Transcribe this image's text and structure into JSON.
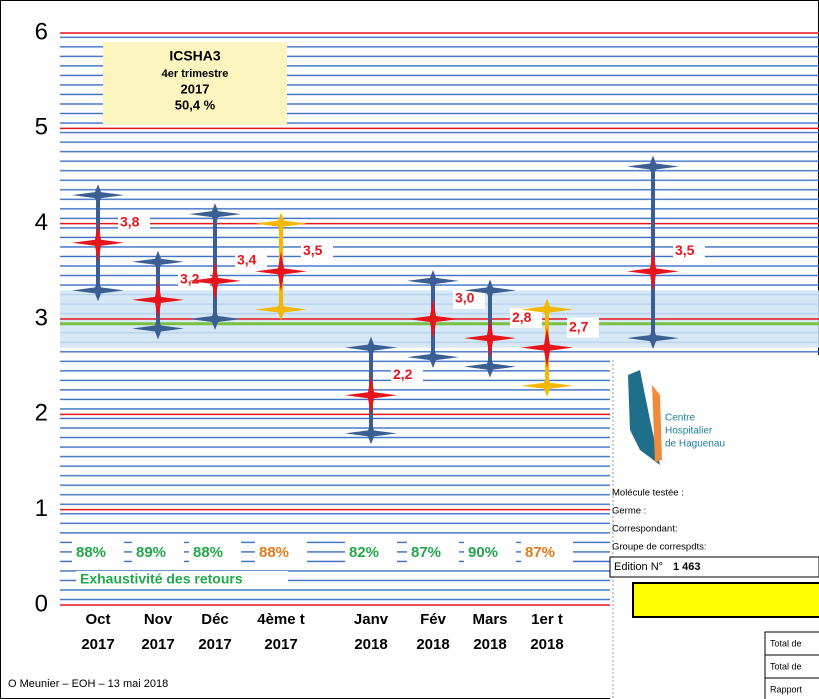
{
  "chart_data": {
    "type": "range",
    "inset": [
      "ICSHA3",
      "4er trimestre",
      "2017",
      "50,4 %"
    ],
    "categories_top": [
      "Oct",
      "Nov",
      "Déc",
      "4ème t",
      "Janv",
      "Fév",
      "Mars",
      "1er t",
      null
    ],
    "categories_bottom": [
      "2017",
      "2017",
      "2017",
      "2017",
      "2018",
      "2018",
      "2018",
      "2018",
      null
    ],
    "mean": [
      3.8,
      3.2,
      3.4,
      3.5,
      2.2,
      3.0,
      2.8,
      2.7,
      3.5
    ],
    "value_labels": [
      "3,8",
      "3,2",
      "3,4",
      "3,5",
      "2,2",
      "3,0",
      "2,8",
      "2,7",
      "3,5"
    ],
    "min": [
      3.3,
      2.9,
      3.0,
      3.1,
      1.8,
      2.6,
      2.5,
      2.3,
      2.8
    ],
    "max": [
      4.3,
      3.6,
      4.1,
      4.0,
      2.7,
      3.4,
      3.3,
      3.1,
      4.6
    ],
    "colors": [
      "#3b5f93",
      "#3b5f93",
      "#3b5f93",
      "#f5b800",
      "#3b5f93",
      "#3b5f93",
      "#3b5f93",
      "#f5b800",
      "#3b5f93"
    ],
    "mean_color": "#e8141c",
    "ylim": [
      0,
      6
    ],
    "yticks": [
      0,
      1,
      2,
      3,
      4,
      5,
      6
    ],
    "target_band": [
      2.7,
      3.3
    ],
    "reference_line": 2.95,
    "exhaustivity": {
      "label": "Exhaustivité des retours",
      "values": [
        88,
        89,
        88,
        88,
        82,
        87,
        90,
        87,
        null
      ],
      "value_labels": [
        "88%",
        "89%",
        "88%",
        "88%",
        "82%",
        "87%",
        "90%",
        "87%",
        null
      ],
      "colors": [
        "#22a84a",
        "#22a84a",
        "#22a84a",
        "#e07b1c",
        "#22a84a",
        "#22a84a",
        "#22a84a",
        "#e07b1c",
        null
      ]
    }
  },
  "document": {
    "logo_lines": [
      "Centre",
      "Hospitalier",
      "de Haguenau"
    ],
    "fields": [
      "Molécule testée :",
      "Germe :",
      "Correspondant:",
      "Groupe de correspdts:"
    ],
    "edition_label": "Edition N°",
    "edition_number": "1 463",
    "table_rows": [
      "Total de",
      "Total de",
      "Rapport"
    ]
  },
  "footer": "O Meunier – EOH – 13 mai 2018"
}
